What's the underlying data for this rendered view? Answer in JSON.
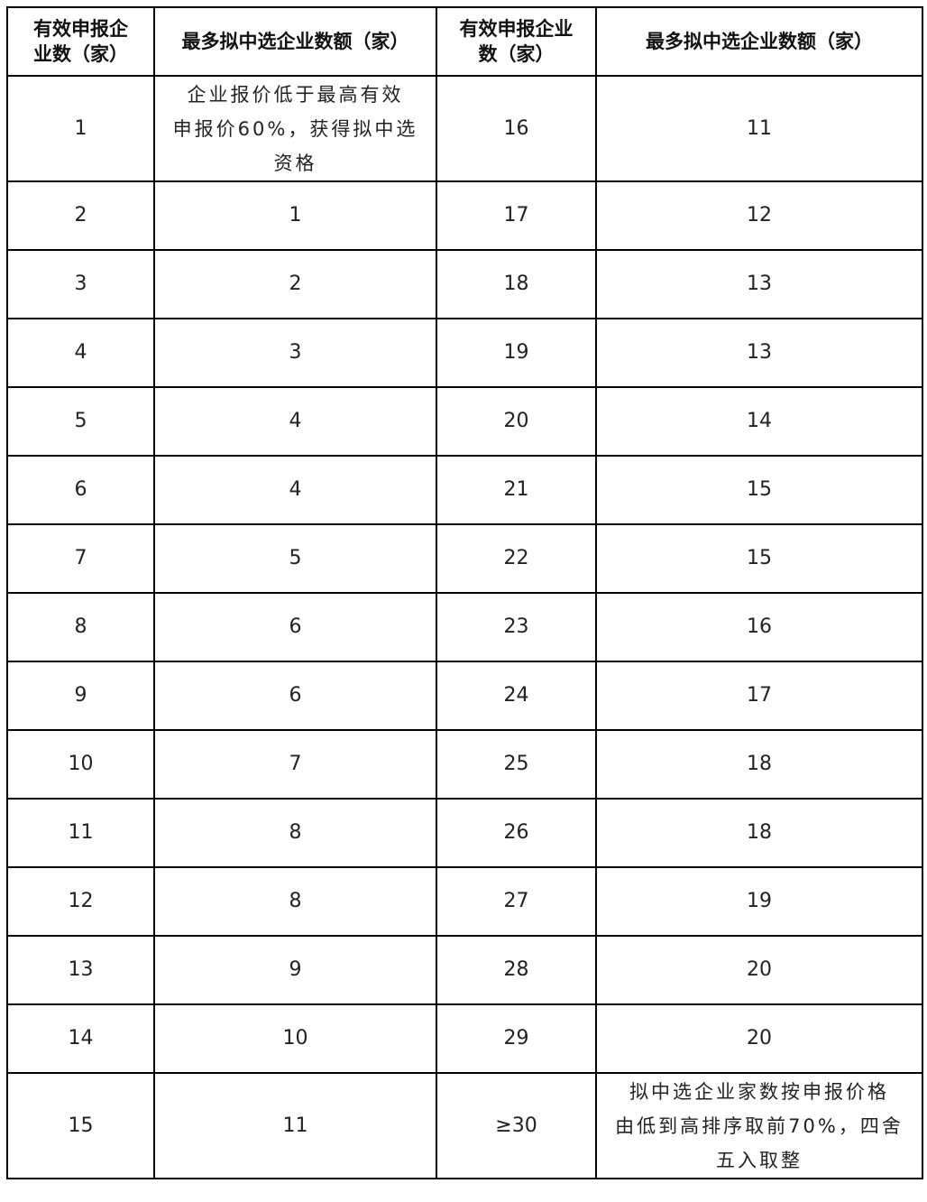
{
  "headers": [
    "有效申报企\n业数（家）",
    "最多拟中选企业数额（家）",
    "有效申报企业\n数（家）",
    "最多拟中选企业数额（家）"
  ],
  "rows": [
    [
      "1",
      "企业报价低于最高有效\n申报价60%，获得拟中选\n资格",
      "16",
      "11"
    ],
    [
      "2",
      "1",
      "17",
      "12"
    ],
    [
      "3",
      "2",
      "18",
      "13"
    ],
    [
      "4",
      "3",
      "19",
      "13"
    ],
    [
      "5",
      "4",
      "20",
      "14"
    ],
    [
      "6",
      "4",
      "21",
      "15"
    ],
    [
      "7",
      "5",
      "22",
      "15"
    ],
    [
      "8",
      "6",
      "23",
      "16"
    ],
    [
      "9",
      "6",
      "24",
      "17"
    ],
    [
      "10",
      "7",
      "25",
      "18"
    ],
    [
      "11",
      "8",
      "26",
      "18"
    ],
    [
      "12",
      "8",
      "27",
      "19"
    ],
    [
      "13",
      "9",
      "28",
      "20"
    ],
    [
      "14",
      "10",
      "29",
      "20"
    ],
    [
      "15",
      "11",
      "≥30",
      "拟中选企业家数按申报价格\n由低到高排序取前70%，四舍\n五入取整"
    ]
  ]
}
